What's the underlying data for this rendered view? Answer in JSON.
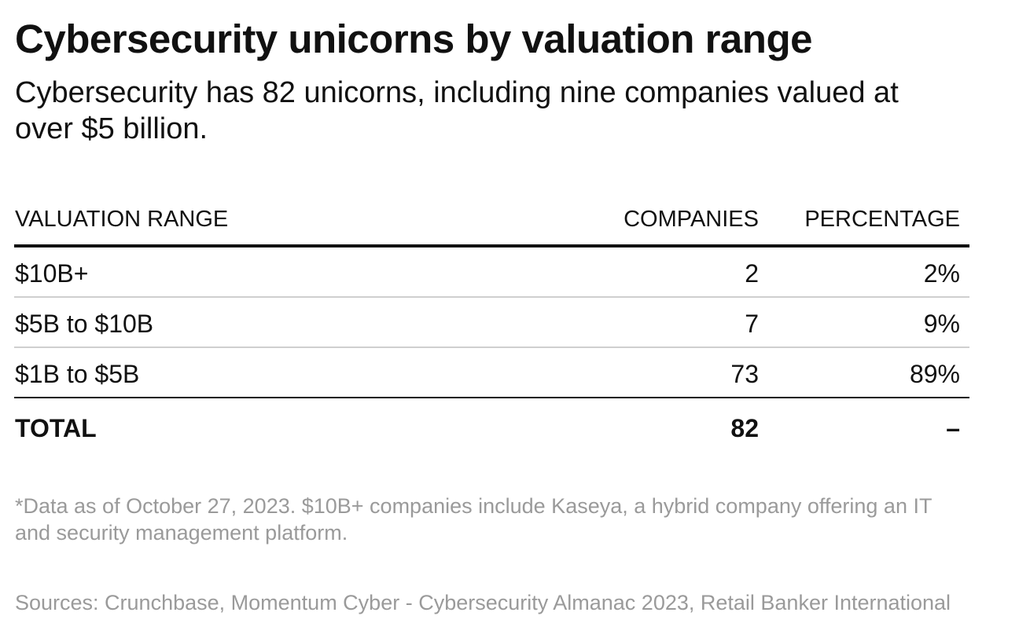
{
  "chart_data": {
    "type": "table",
    "title": "Cybersecurity unicorns by valuation range",
    "subtitle": "Cybersecurity has 82 unicorns, including nine companies valued at over $5 billion.",
    "columns": [
      "VALUATION RANGE",
      "COMPANIES",
      "PERCENTAGE"
    ],
    "rows": [
      {
        "range": "$10B+",
        "companies": "2",
        "percentage": "2%"
      },
      {
        "range": "$5B to $10B",
        "companies": "7",
        "percentage": "9%"
      },
      {
        "range": "$1B to $5B",
        "companies": "73",
        "percentage": "89%"
      }
    ],
    "total": {
      "label": "TOTAL",
      "companies": "82",
      "percentage": "–"
    },
    "footnote": "*Data as of October 27, 2023. $10B+ companies include Kaseya, a hybrid company offering an IT and security management platform.",
    "source": "Sources: Crunchbase, Momentum Cyber - Cybersecurity Almanac 2023, Retail Banker International"
  }
}
